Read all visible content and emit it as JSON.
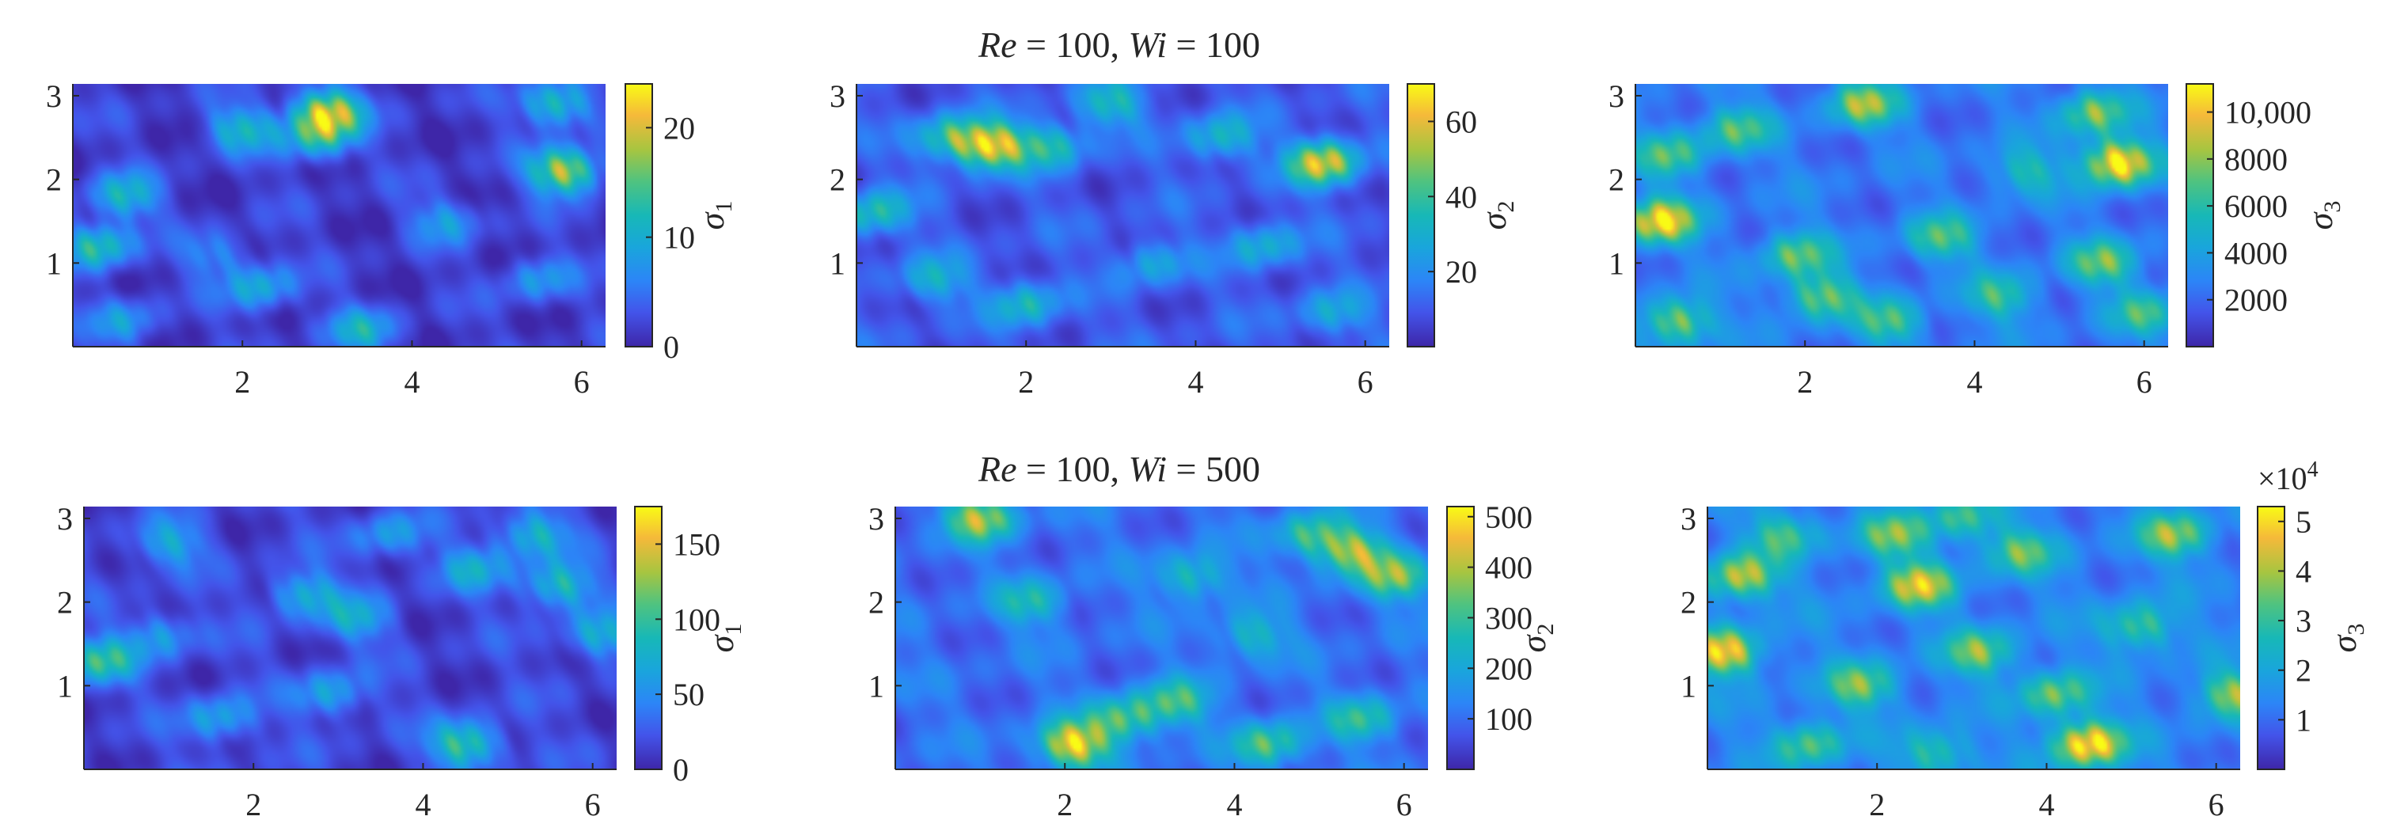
{
  "figure": {
    "row_titles": [
      {
        "re_symbol": "Re",
        "re_value": "100",
        "wi_symbol": "Wi",
        "wi_value": "100"
      },
      {
        "re_symbol": "Re",
        "re_value": "100",
        "wi_symbol": "Wi",
        "wi_value": "500"
      }
    ]
  },
  "chart_data": [
    {
      "type": "heatmap",
      "row": 0,
      "col": 0,
      "title": "Re = 100, Wi = 100",
      "xlim": [
        0,
        6.283
      ],
      "ylim": [
        0,
        3.1416
      ],
      "xticks": [
        2,
        4,
        6
      ],
      "yticks": [
        1,
        2,
        3
      ],
      "colorbar": {
        "label_base": "σ",
        "label_sub": "1",
        "range": [
          0,
          24
        ],
        "ticks": [
          "0",
          "10",
          "20"
        ],
        "tick_values": [
          0,
          10,
          20
        ],
        "exponent": ""
      },
      "colormap": "parula",
      "background_level": 0.07,
      "hotspots": [
        [
          3.0,
          2.8,
          0.9
        ],
        [
          5.8,
          2.1,
          0.85
        ],
        [
          5.7,
          2.9,
          0.55
        ],
        [
          0.3,
          1.2,
          0.55
        ],
        [
          0.6,
          1.8,
          0.45
        ],
        [
          2.0,
          2.6,
          0.45
        ],
        [
          2.9,
          2.5,
          0.5
        ],
        [
          2.2,
          0.7,
          0.4
        ],
        [
          3.4,
          0.2,
          0.4
        ],
        [
          0.6,
          0.3,
          0.3
        ],
        [
          4.4,
          1.5,
          0.3
        ],
        [
          5.5,
          0.8,
          0.3
        ],
        [
          1.7,
          1.1,
          0.25
        ]
      ]
    },
    {
      "type": "heatmap",
      "row": 0,
      "col": 1,
      "title": "Re = 100, Wi = 100",
      "xlim": [
        0,
        6.283
      ],
      "ylim": [
        0,
        3.1416
      ],
      "xticks": [
        2,
        4,
        6
      ],
      "yticks": [
        1,
        2,
        3
      ],
      "colorbar": {
        "label_base": "σ",
        "label_sub": "2",
        "range": [
          0,
          70
        ],
        "ticks": [
          "20",
          "40",
          "60"
        ],
        "tick_values": [
          20,
          40,
          60
        ],
        "exponent": ""
      },
      "colormap": "parula",
      "background_level": 0.14,
      "hotspots": [
        [
          1.6,
          2.4,
          0.85
        ],
        [
          5.5,
          2.2,
          0.85
        ],
        [
          1.1,
          2.5,
          0.5
        ],
        [
          2.3,
          2.4,
          0.45
        ],
        [
          0.2,
          1.6,
          0.45
        ],
        [
          4.3,
          2.5,
          0.4
        ],
        [
          3.0,
          2.9,
          0.4
        ],
        [
          2.0,
          0.5,
          0.4
        ],
        [
          4.8,
          1.2,
          0.35
        ],
        [
          3.5,
          1.0,
          0.3
        ],
        [
          0.9,
          0.8,
          0.35
        ],
        [
          5.6,
          0.4,
          0.3
        ]
      ]
    },
    {
      "type": "heatmap",
      "row": 0,
      "col": 2,
      "title": "Re = 100, Wi = 100",
      "xlim": [
        0,
        6.283
      ],
      "ylim": [
        0,
        3.1416
      ],
      "xticks": [
        2,
        4,
        6
      ],
      "yticks": [
        1,
        2,
        3
      ],
      "colorbar": {
        "label_base": "σ",
        "label_sub": "3",
        "range": [
          0,
          11200
        ],
        "ticks": [
          "2000",
          "4000",
          "6000",
          "8000",
          "10,000"
        ],
        "tick_values": [
          2000,
          4000,
          6000,
          8000,
          10000
        ],
        "exponent": ""
      },
      "colormap": "parula",
      "background_level": 0.22,
      "hotspots": [
        [
          0.3,
          1.5,
          0.85
        ],
        [
          5.7,
          2.2,
          0.95
        ],
        [
          0.5,
          0.3,
          0.6
        ],
        [
          2.7,
          2.9,
          0.6
        ],
        [
          2.2,
          0.6,
          0.55
        ],
        [
          1.9,
          1.1,
          0.5
        ],
        [
          5.5,
          1.0,
          0.5
        ],
        [
          3.6,
          1.3,
          0.45
        ],
        [
          5.4,
          2.8,
          0.55
        ],
        [
          1.2,
          2.6,
          0.45
        ],
        [
          4.3,
          0.6,
          0.4
        ],
        [
          3.0,
          0.3,
          0.45
        ],
        [
          6.0,
          0.4,
          0.4
        ],
        [
          0.4,
          2.3,
          0.45
        ],
        [
          4.6,
          2.1,
          0.35
        ]
      ]
    },
    {
      "type": "heatmap",
      "row": 1,
      "col": 0,
      "title": "Re = 100, Wi = 500",
      "xlim": [
        0,
        6.283
      ],
      "ylim": [
        0,
        3.1416
      ],
      "xticks": [
        2,
        4,
        6
      ],
      "yticks": [
        1,
        2,
        3
      ],
      "colorbar": {
        "label_base": "σ",
        "label_sub": "1",
        "range": [
          0,
          175
        ],
        "ticks": [
          "0",
          "50",
          "100",
          "150"
        ],
        "tick_values": [
          0,
          50,
          100,
          150
        ],
        "exponent": ""
      },
      "colormap": "parula",
      "background_level": 0.09,
      "hotspots": [
        [
          0.2,
          1.3,
          0.55
        ],
        [
          4.5,
          0.3,
          0.6
        ],
        [
          5.6,
          2.2,
          0.5
        ],
        [
          5.3,
          2.8,
          0.45
        ],
        [
          2.6,
          2.1,
          0.4
        ],
        [
          1.0,
          2.7,
          0.35
        ],
        [
          3.2,
          1.8,
          0.35
        ],
        [
          1.6,
          0.6,
          0.35
        ],
        [
          2.9,
          0.9,
          0.35
        ],
        [
          4.6,
          2.4,
          0.35
        ],
        [
          6.1,
          1.6,
          0.4
        ],
        [
          0.9,
          1.6,
          0.3
        ],
        [
          3.6,
          2.8,
          0.3
        ]
      ]
    },
    {
      "type": "heatmap",
      "row": 1,
      "col": 1,
      "title": "Re = 100, Wi = 500",
      "xlim": [
        0,
        6.283
      ],
      "ylim": [
        0,
        3.1416
      ],
      "xticks": [
        2,
        4,
        6
      ],
      "yticks": [
        1,
        2,
        3
      ],
      "colorbar": {
        "label_base": "σ",
        "label_sub": "2",
        "range": [
          0,
          520
        ],
        "ticks": [
          "100",
          "200",
          "300",
          "400",
          "500"
        ],
        "tick_values": [
          100,
          200,
          300,
          400,
          500
        ],
        "exponent": ""
      },
      "colormap": "parula",
      "background_level": 0.2,
      "hotspots": [
        [
          2.1,
          0.3,
          0.85
        ],
        [
          1.0,
          3.0,
          0.65
        ],
        [
          5.4,
          2.6,
          0.6
        ],
        [
          5.9,
          2.3,
          0.55
        ],
        [
          2.7,
          0.6,
          0.5
        ],
        [
          4.4,
          0.3,
          0.5
        ],
        [
          3.3,
          0.8,
          0.45
        ],
        [
          4.9,
          2.8,
          0.45
        ],
        [
          3.5,
          2.3,
          0.4
        ],
        [
          1.6,
          2.0,
          0.35
        ],
        [
          4.2,
          1.6,
          0.35
        ],
        [
          5.5,
          0.6,
          0.4
        ]
      ]
    },
    {
      "type": "heatmap",
      "row": 1,
      "col": 2,
      "title": "Re = 100, Wi = 500",
      "xlim": [
        0,
        6.283
      ],
      "ylim": [
        0,
        3.1416
      ],
      "xticks": [
        2,
        4,
        6
      ],
      "yticks": [
        1,
        2,
        3
      ],
      "colorbar": {
        "label_base": "σ",
        "label_sub": "3",
        "range": [
          0,
          53000
        ],
        "ticks": [
          "1",
          "2",
          "3",
          "4",
          "5"
        ],
        "tick_values": [
          10000,
          20000,
          30000,
          40000,
          50000
        ],
        "exponent": "4"
      },
      "colormap": "parula",
      "background_level": 0.25,
      "hotspots": [
        [
          0.2,
          1.4,
          0.8
        ],
        [
          4.5,
          0.3,
          0.9
        ],
        [
          2.5,
          2.2,
          0.7
        ],
        [
          0.4,
          2.3,
          0.65
        ],
        [
          6.2,
          0.9,
          0.55
        ],
        [
          5.5,
          2.8,
          0.55
        ],
        [
          3.2,
          1.4,
          0.5
        ],
        [
          1.8,
          1.0,
          0.5
        ],
        [
          4.1,
          0.9,
          0.5
        ],
        [
          2.2,
          2.8,
          0.5
        ],
        [
          1.2,
          0.3,
          0.45
        ],
        [
          3.7,
          2.6,
          0.45
        ],
        [
          5.1,
          1.7,
          0.45
        ],
        [
          2.7,
          0.2,
          0.4
        ],
        [
          0.9,
          2.8,
          0.4
        ],
        [
          3.0,
          3.0,
          0.4
        ]
      ]
    }
  ]
}
